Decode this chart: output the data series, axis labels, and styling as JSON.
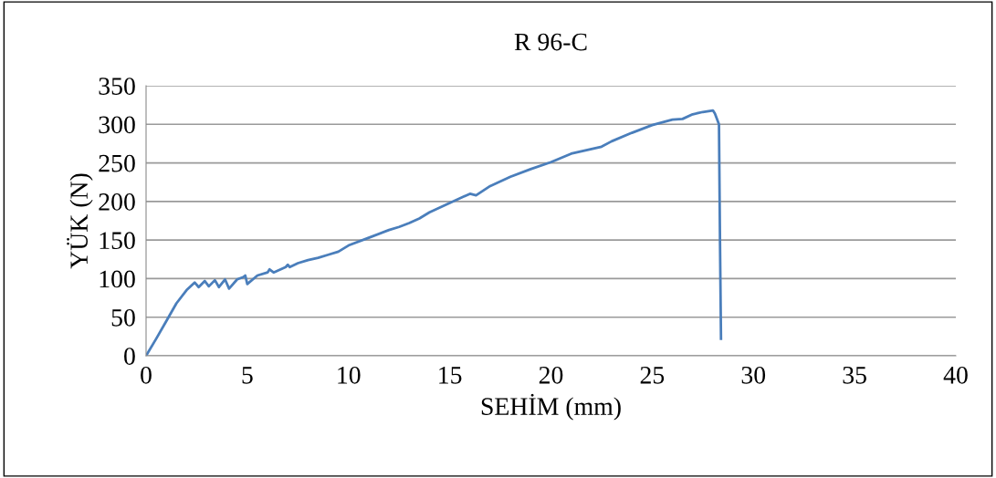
{
  "chart_data": {
    "type": "line",
    "title": "R 96-C",
    "xlabel": "SEHİM (mm)",
    "ylabel": "YÜK (N)",
    "series": [
      {
        "color": "#4a7ebb",
        "x": [
          0,
          0.5,
          1,
          1.5,
          2,
          2.4,
          2.6,
          2.9,
          3.1,
          3.4,
          3.6,
          3.9,
          4.1,
          4.5,
          4.8,
          4.9,
          5.0,
          5.5,
          6.0,
          6.1,
          6.3,
          6.9,
          7.0,
          7.1,
          7.5,
          8.0,
          8.5,
          9.0,
          9.5,
          10,
          11,
          12,
          12.5,
          13,
          13.5,
          14,
          15,
          16,
          16.3,
          17,
          18,
          19,
          20,
          21,
          22,
          22.5,
          23,
          24,
          25,
          26,
          26.5,
          27,
          27.5,
          28,
          28.1,
          28.3,
          28.35,
          28.4
        ],
        "values": [
          0,
          22,
          45,
          68,
          85,
          95,
          89,
          97,
          90,
          98,
          89,
          99,
          87,
          99,
          102,
          104,
          93,
          104,
          108,
          112,
          108,
          115,
          118,
          115,
          120,
          124,
          127,
          131,
          135,
          143,
          153,
          163,
          167,
          172,
          178,
          186,
          198,
          210,
          208,
          220,
          232,
          242,
          251,
          262,
          268,
          271,
          278,
          289,
          299,
          306,
          307,
          313,
          316,
          318,
          314,
          300,
          150,
          22
        ]
      }
    ],
    "xlim": [
      0,
      40
    ],
    "xticks": [
      0,
      5,
      10,
      15,
      20,
      25,
      30,
      35,
      40
    ],
    "ylim": [
      0,
      350
    ],
    "yticks": [
      0,
      50,
      100,
      150,
      200,
      250,
      300,
      350
    ],
    "grid": "y",
    "legend": false,
    "marker": "none",
    "line_style": "solid"
  }
}
